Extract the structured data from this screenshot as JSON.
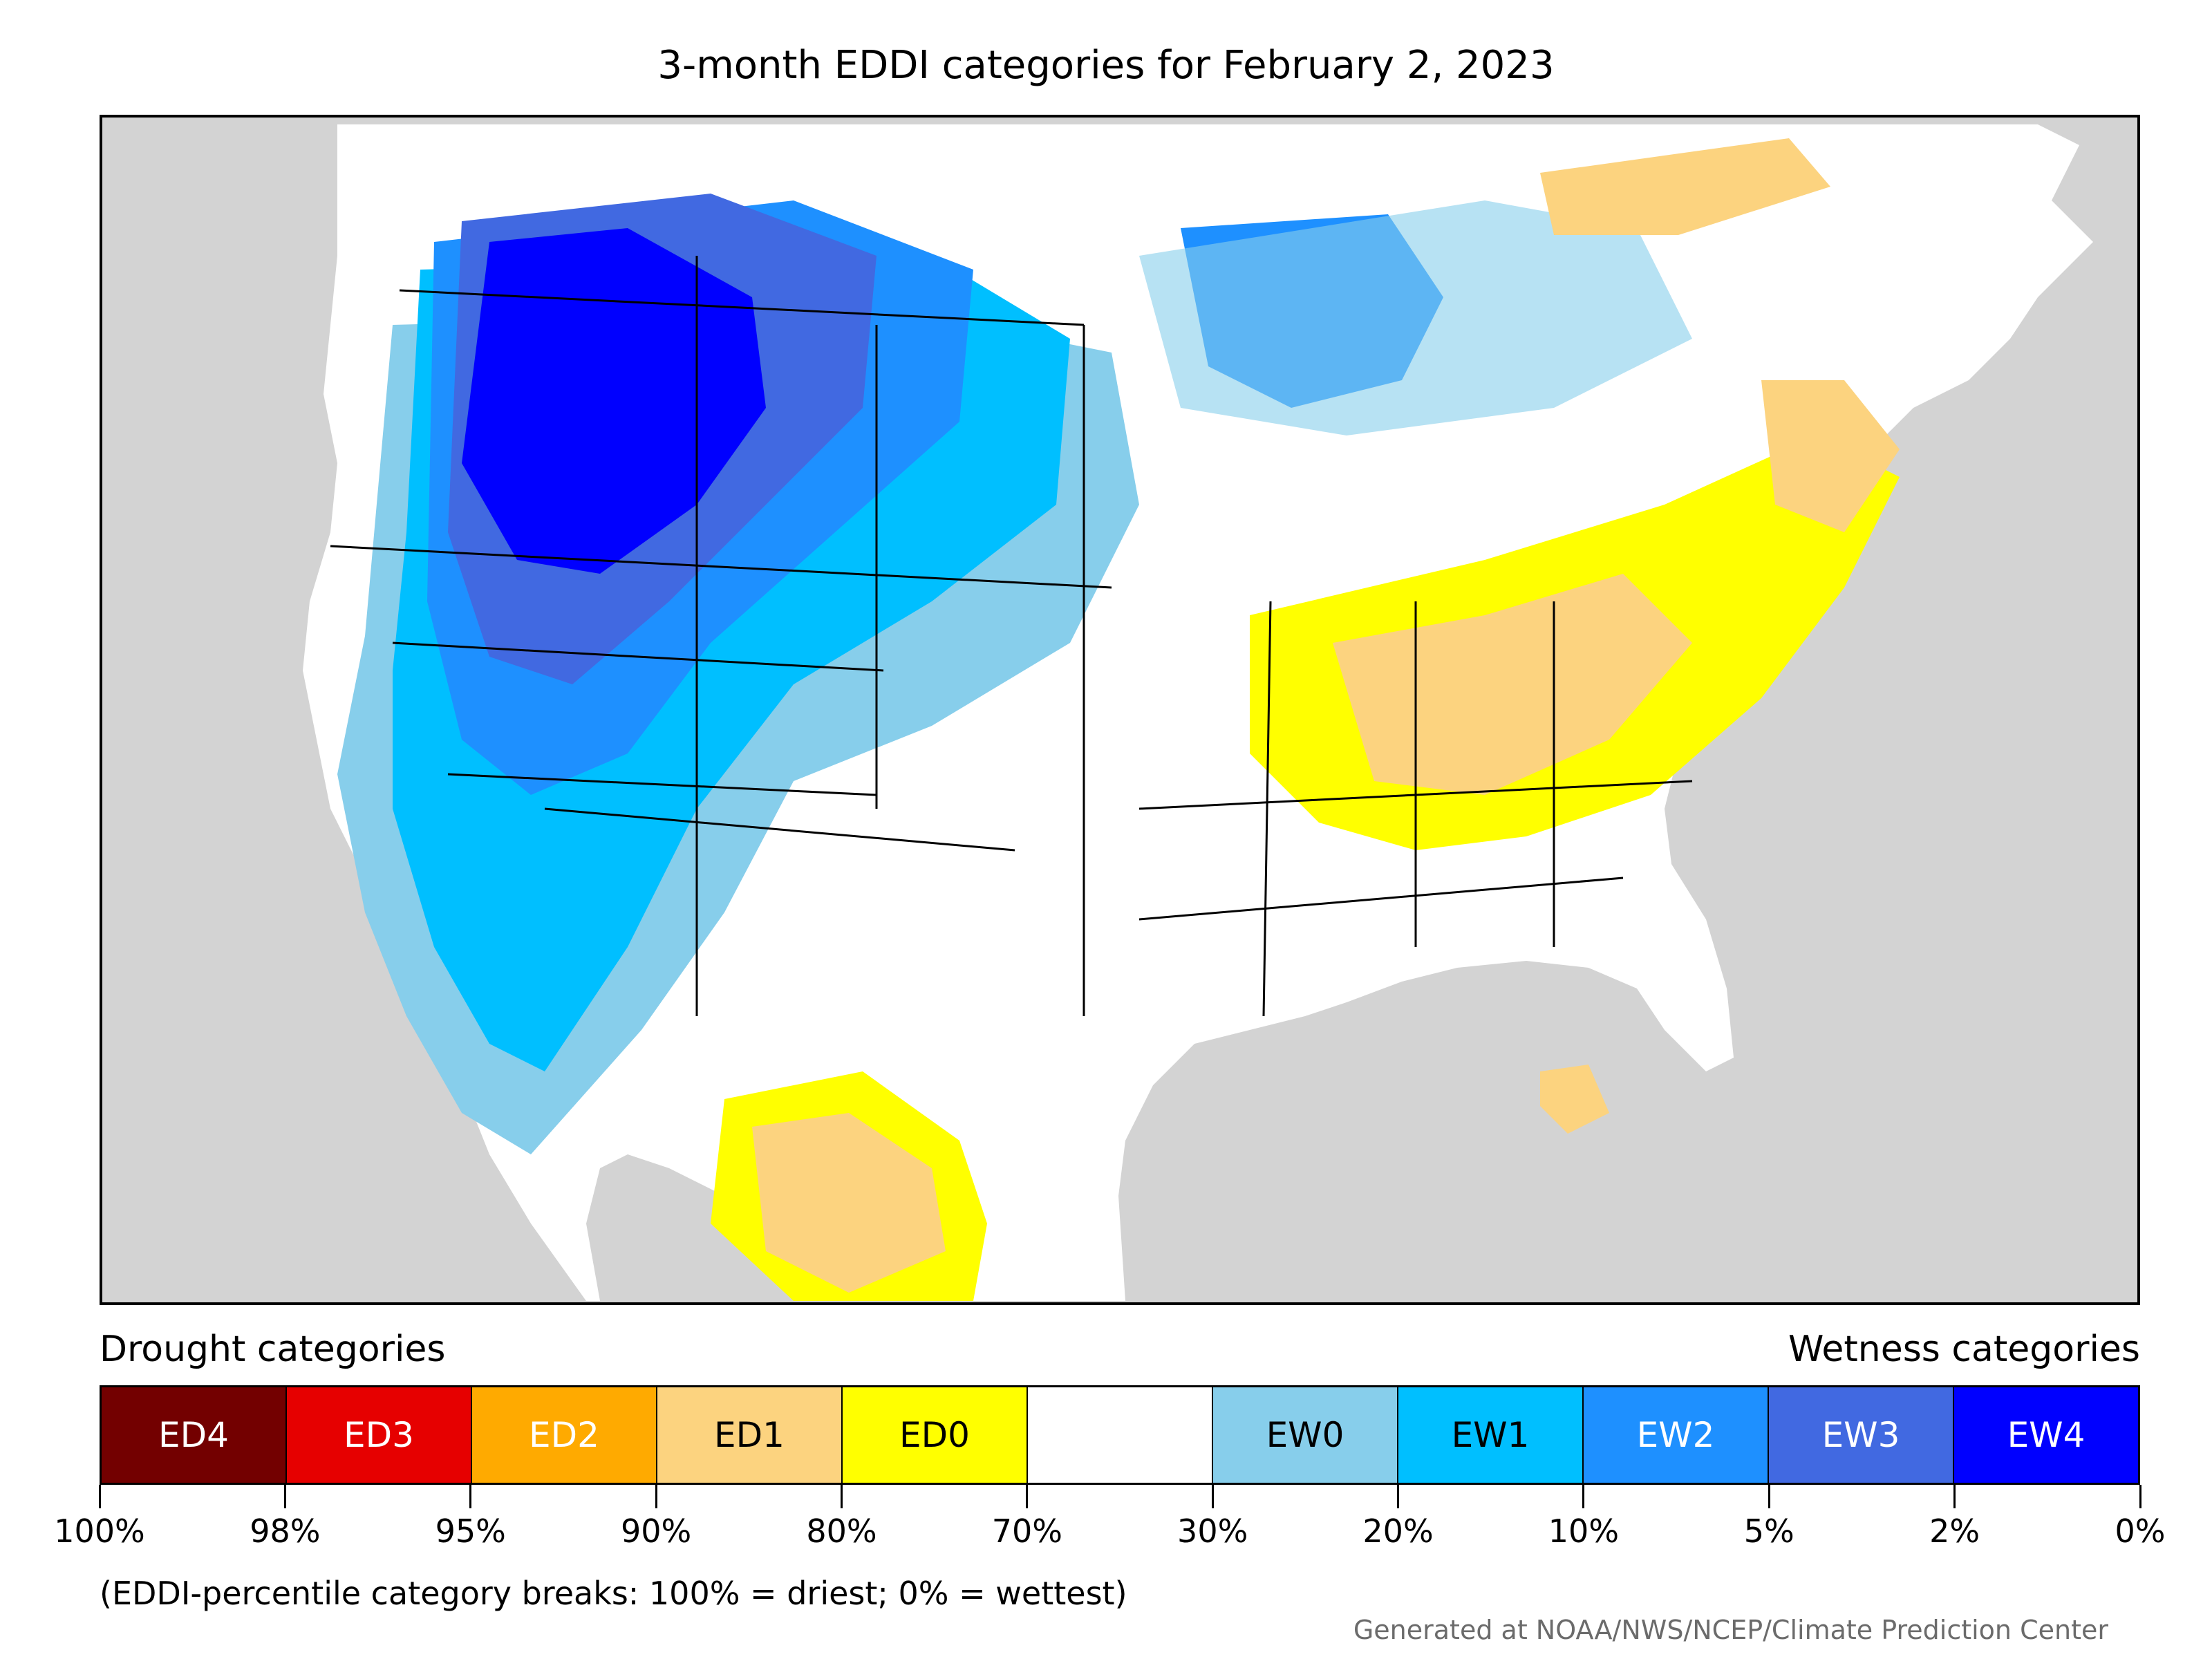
{
  "title": "3-month EDDI categories for February 2, 2023",
  "legend": {
    "drought_heading": "Drought categories",
    "wetness_heading": "Wetness categories",
    "categories": [
      {
        "label": "ED4",
        "color": "#730000",
        "text_color": "#ffffff"
      },
      {
        "label": "ED3",
        "color": "#e60000",
        "text_color": "#ffffff"
      },
      {
        "label": "ED2",
        "color": "#ffaa00",
        "text_color": "#ffffff"
      },
      {
        "label": "ED1",
        "color": "#fcd37f",
        "text_color": "#000000"
      },
      {
        "label": "ED0",
        "color": "#ffff00",
        "text_color": "#000000"
      },
      {
        "label": "",
        "color": "#ffffff",
        "text_color": "#000000"
      },
      {
        "label": "EW0",
        "color": "#87ceeb",
        "text_color": "#000000"
      },
      {
        "label": "EW1",
        "color": "#00bfff",
        "text_color": "#000000"
      },
      {
        "label": "EW2",
        "color": "#1e90ff",
        "text_color": "#ffffff"
      },
      {
        "label": "EW3",
        "color": "#4169e1",
        "text_color": "#ffffff"
      },
      {
        "label": "EW4",
        "color": "#0000ff",
        "text_color": "#ffffff"
      }
    ],
    "tick_labels": [
      "100%",
      "98%",
      "95%",
      "90%",
      "80%",
      "70%",
      "30%",
      "20%",
      "10%",
      "5%",
      "2%",
      "0%"
    ]
  },
  "footnote": "(EDDI-percentile category breaks: 100% = driest; 0% = wettest)",
  "credit": "Generated at NOAA/NWS/NCEP/Climate Prediction Center",
  "map": {
    "land_color": "#ffffff",
    "water_color": "#d3d3d3",
    "border_color": "#000000"
  }
}
